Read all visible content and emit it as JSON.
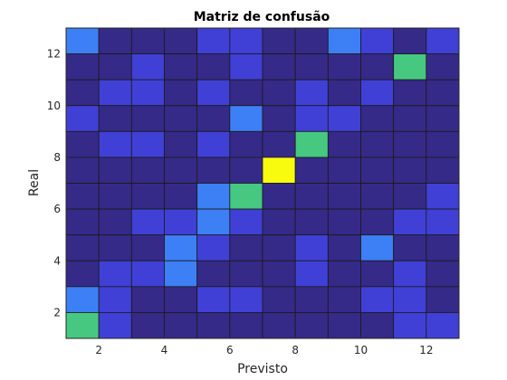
{
  "chart_data": {
    "type": "heatmap",
    "title": "Matriz de confusão",
    "xlabel": "Previsto",
    "ylabel": "Real",
    "x_ticks": [
      "2",
      "4",
      "6",
      "8",
      "10",
      "12"
    ],
    "y_ticks": [
      "2",
      "4",
      "6",
      "8",
      "10",
      "12"
    ],
    "xlim": [
      1,
      13
    ],
    "ylim": [
      1,
      13
    ],
    "colormap": "parula",
    "clim": [
      0,
      4
    ],
    "rows_top_to_bottom_real_13_to_1": [
      [
        1,
        0,
        0,
        0,
        0.5,
        0.5,
        0,
        0,
        1,
        0.5,
        0,
        0.5
      ],
      [
        0,
        0,
        0.5,
        0,
        0,
        0.5,
        0,
        0,
        0,
        0,
        2,
        0
      ],
      [
        0,
        0.5,
        0.5,
        0,
        0.5,
        0,
        0,
        0.5,
        0,
        0.5,
        0,
        0
      ],
      [
        0.5,
        0,
        0,
        0,
        0,
        1,
        0,
        0.5,
        0.5,
        0,
        0,
        0
      ],
      [
        0,
        0.5,
        0.5,
        0,
        0.5,
        0,
        0,
        2,
        0,
        0,
        0,
        0
      ],
      [
        0,
        0,
        0,
        0,
        0,
        0,
        4,
        0,
        0,
        0,
        0,
        0
      ],
      [
        0,
        0,
        0,
        0,
        1,
        2,
        0,
        0,
        0,
        0,
        0,
        0.5
      ],
      [
        0,
        0,
        0.5,
        0.5,
        1,
        0.5,
        0,
        0,
        0,
        0,
        0.5,
        0.5
      ],
      [
        0,
        0,
        0,
        1,
        0.5,
        0,
        0,
        0.5,
        0,
        1,
        0,
        0
      ],
      [
        0,
        0.5,
        0.5,
        1,
        0,
        0,
        0,
        0.5,
        0,
        0,
        0.5,
        0
      ],
      [
        1,
        0.5,
        0,
        0,
        0.5,
        0.5,
        0,
        0,
        0,
        0.5,
        0.5,
        0
      ],
      [
        2,
        0.5,
        0,
        0,
        0,
        0,
        0,
        0,
        0,
        0,
        0.5,
        0.5
      ]
    ]
  }
}
